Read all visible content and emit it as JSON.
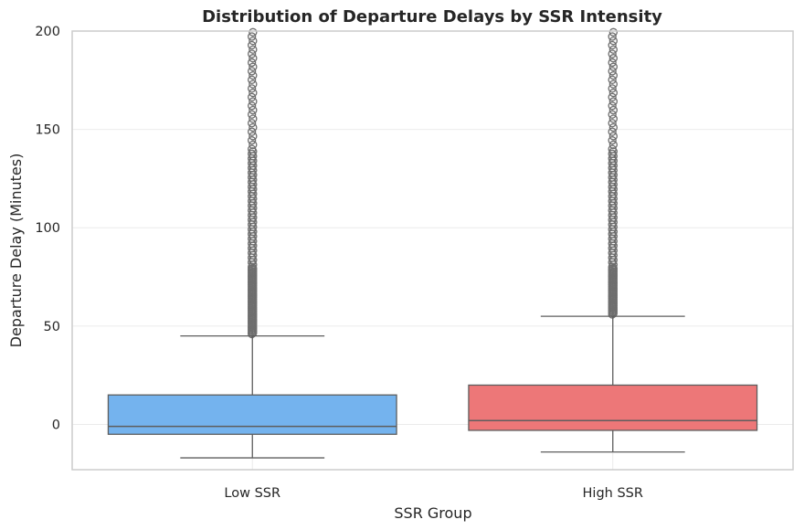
{
  "chart_data": {
    "type": "box",
    "title": "Distribution of Departure Delays by SSR Intensity",
    "xlabel": "SSR Group",
    "ylabel": "Departure Delay (Minutes)",
    "ylim": [
      -23,
      200
    ],
    "yticks": [
      0,
      50,
      100,
      150,
      200
    ],
    "grid": true,
    "categories": [
      "Low SSR",
      "High SSR"
    ],
    "boxes": [
      {
        "category": "Low SSR",
        "color": "#74b3ee",
        "whisker_low": -17,
        "q1": -5,
        "median": -1,
        "q3": 15,
        "whisker_high": 45,
        "outliers_from": 46,
        "outliers_to": 200
      },
      {
        "category": "High SSR",
        "color": "#ed7778",
        "whisker_low": -14,
        "q1": -3,
        "median": 2,
        "q3": 20,
        "whisker_high": 55,
        "outliers_from": 56,
        "outliers_to": 200
      }
    ],
    "colors": {
      "edge": "#5e5e5e",
      "grid": "#ebebeb",
      "spine": "#cccccc",
      "outlier": "#6e6e6e"
    }
  }
}
